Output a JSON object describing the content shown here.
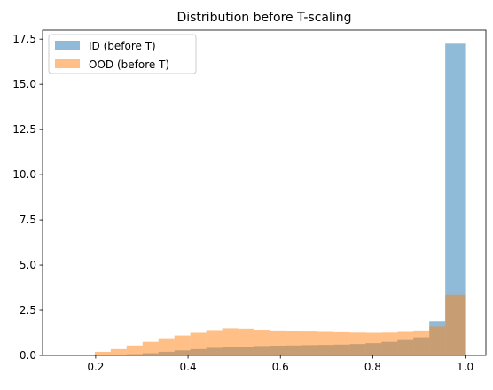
{
  "chart_data": {
    "type": "histogram",
    "title": "Distribution before T-scaling",
    "xlabel": "",
    "ylabel": "",
    "xlim": [
      0.085,
      1.045
    ],
    "ylim": [
      0,
      18.0
    ],
    "x_ticks": [
      0.2,
      0.4,
      0.6,
      0.8,
      1.0
    ],
    "x_tick_labels": [
      "0.2",
      "0.4",
      "0.6",
      "0.8",
      "1.0"
    ],
    "y_ticks": [
      0.0,
      2.5,
      5.0,
      7.5,
      10.0,
      12.5,
      15.0,
      17.5
    ],
    "y_tick_labels": [
      "0.0",
      "2.5",
      "5.0",
      "7.5",
      "10.0",
      "12.5",
      "15.0",
      "17.5"
    ],
    "grid": false,
    "legend": {
      "position": "top-left",
      "entries": [
        {
          "label": "ID (before T)",
          "series": 0
        },
        {
          "label": "OOD (before T)",
          "series": 1
        }
      ]
    },
    "series": [
      {
        "name": "ID (before T)",
        "color": "#1f77b4",
        "alpha": 0.5,
        "bin_edges": [
          0.198,
          0.2325,
          0.267,
          0.3015,
          0.336,
          0.3705,
          0.405,
          0.4395,
          0.474,
          0.5085,
          0.543,
          0.5775,
          0.612,
          0.6465,
          0.681,
          0.7155,
          0.75,
          0.7845,
          0.819,
          0.8535,
          0.888,
          0.9225,
          0.957,
          1.0
        ],
        "values": [
          0.02,
          0.03,
          0.07,
          0.12,
          0.2,
          0.28,
          0.35,
          0.42,
          0.46,
          0.48,
          0.52,
          0.54,
          0.55,
          0.57,
          0.58,
          0.6,
          0.63,
          0.68,
          0.75,
          0.85,
          1.0,
          1.9,
          17.25
        ]
      },
      {
        "name": "OOD (before T)",
        "color": "#ff7f0e",
        "alpha": 0.5,
        "bin_edges": [
          0.198,
          0.2325,
          0.267,
          0.3015,
          0.336,
          0.3705,
          0.405,
          0.4395,
          0.474,
          0.5085,
          0.543,
          0.5775,
          0.612,
          0.6465,
          0.681,
          0.7155,
          0.75,
          0.7845,
          0.819,
          0.8535,
          0.888,
          0.9225,
          0.957,
          1.0
        ],
        "values": [
          0.2,
          0.35,
          0.55,
          0.75,
          0.95,
          1.1,
          1.25,
          1.4,
          1.5,
          1.48,
          1.42,
          1.38,
          1.35,
          1.32,
          1.3,
          1.28,
          1.26,
          1.25,
          1.26,
          1.3,
          1.38,
          1.6,
          3.35
        ]
      }
    ]
  }
}
